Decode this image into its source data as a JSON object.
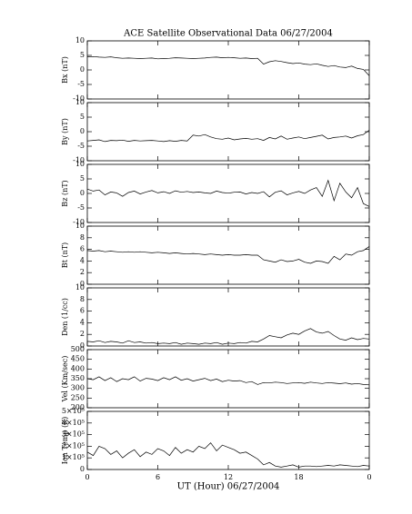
{
  "chart_data": {
    "type": "line",
    "title": "ACE Satellite Observational Data   06/27/2004",
    "xlabel": "UT (Hour)   06/27/2004",
    "xlim": [
      0,
      24
    ],
    "xticks": [
      0,
      6,
      12,
      18,
      {
        "value": 24,
        "label": "0"
      }
    ],
    "x": [
      0,
      0.5,
      1,
      1.5,
      2,
      2.5,
      3,
      3.5,
      4,
      4.5,
      5,
      5.5,
      6,
      6.5,
      7,
      7.5,
      8,
      8.5,
      9,
      9.5,
      10,
      10.5,
      11,
      11.5,
      12,
      12.5,
      13,
      13.5,
      14,
      14.5,
      15,
      15.5,
      16,
      16.5,
      17,
      17.5,
      18,
      18.5,
      19,
      19.5,
      20,
      20.5,
      21,
      21.5,
      22,
      22.5,
      23,
      23.5,
      24
    ],
    "panels": [
      {
        "ylabel": "Bx (nT)",
        "ylim": [
          -10,
          10
        ],
        "yticks": [
          -10,
          -5,
          0,
          5,
          10
        ],
        "color": "#000000",
        "values": [
          4.5,
          4.6,
          4.4,
          4.3,
          4.5,
          4.2,
          4.0,
          4.1,
          4.0,
          3.9,
          4.0,
          4.1,
          3.8,
          3.9,
          4.0,
          4.2,
          4.1,
          4.0,
          3.9,
          4.0,
          4.1,
          4.3,
          4.4,
          4.2,
          4.3,
          4.2,
          4.0,
          4.1,
          3.9,
          4.0,
          2.0,
          2.8,
          3.2,
          2.9,
          2.5,
          2.2,
          2.4,
          2.0,
          1.8,
          2.1,
          1.6,
          1.2,
          1.5,
          1.0,
          0.8,
          1.3,
          0.5,
          0.2,
          -2.0
        ]
      },
      {
        "ylabel": "By (nT)",
        "ylim": [
          -10,
          10
        ],
        "yticks": [
          -10,
          -5,
          0,
          5,
          10
        ],
        "color": "#000000",
        "values": [
          -3.2,
          -3.0,
          -2.8,
          -3.4,
          -3.0,
          -3.1,
          -2.9,
          -3.3,
          -3.0,
          -3.2,
          -3.1,
          -3.0,
          -3.2,
          -3.4,
          -3.1,
          -3.3,
          -3.0,
          -3.2,
          -1.2,
          -1.5,
          -1.0,
          -1.8,
          -2.4,
          -2.6,
          -2.2,
          -2.8,
          -2.5,
          -2.3,
          -2.6,
          -2.4,
          -3.0,
          -2.0,
          -2.5,
          -1.5,
          -2.6,
          -2.2,
          -1.8,
          -2.4,
          -2.0,
          -1.6,
          -1.2,
          -2.5,
          -2.0,
          -1.8,
          -1.5,
          -2.2,
          -1.4,
          -1.0,
          0.5
        ]
      },
      {
        "ylabel": "Bz (nT)",
        "ylim": [
          -10,
          10
        ],
        "yticks": [
          -10,
          -5,
          0,
          5,
          10
        ],
        "color": "#000000",
        "values": [
          1.5,
          0.8,
          1.2,
          -0.5,
          0.5,
          0.2,
          -1.0,
          0.3,
          0.8,
          -0.2,
          0.5,
          1.0,
          0.2,
          0.6,
          0.0,
          0.9,
          0.4,
          0.7,
          0.3,
          0.5,
          0.2,
          0.0,
          0.8,
          0.3,
          0.1,
          0.4,
          0.5,
          -0.2,
          0.3,
          0.0,
          0.6,
          -1.2,
          0.4,
          0.9,
          -0.5,
          0.2,
          0.7,
          0.0,
          1.2,
          2.0,
          -1.0,
          4.5,
          -2.5,
          3.5,
          0.5,
          -1.5,
          2.0,
          -3.5,
          -4.5
        ]
      },
      {
        "ylabel": "Bt (nT)",
        "ylim": [
          0,
          10
        ],
        "yticks": [
          0,
          2,
          4,
          6,
          8,
          10
        ],
        "color": "#000000",
        "values": [
          5.8,
          5.7,
          5.8,
          5.6,
          5.7,
          5.6,
          5.5,
          5.6,
          5.5,
          5.6,
          5.5,
          5.4,
          5.5,
          5.4,
          5.3,
          5.4,
          5.3,
          5.2,
          5.3,
          5.2,
          5.1,
          5.2,
          5.1,
          5.0,
          5.1,
          5.0,
          5.0,
          5.1,
          5.0,
          5.0,
          4.2,
          4.0,
          3.8,
          4.2,
          3.9,
          4.0,
          4.3,
          3.8,
          3.6,
          4.0,
          3.9,
          3.6,
          4.8,
          4.2,
          5.2,
          5.0,
          5.6,
          5.8,
          6.5
        ]
      },
      {
        "ylabel": "Den (1/cc)",
        "ylim": [
          0,
          10
        ],
        "yticks": [
          0,
          2,
          4,
          6,
          8,
          10
        ],
        "color": "#000000",
        "values": [
          0.8,
          0.7,
          0.9,
          0.6,
          0.8,
          0.7,
          0.5,
          0.9,
          0.6,
          0.7,
          0.5,
          0.6,
          0.4,
          0.5,
          0.4,
          0.6,
          0.3,
          0.5,
          0.4,
          0.3,
          0.5,
          0.4,
          0.6,
          0.3,
          0.5,
          0.4,
          0.6,
          0.5,
          0.8,
          0.7,
          1.2,
          1.8,
          1.6,
          1.4,
          1.9,
          2.2,
          2.0,
          2.6,
          3.0,
          2.4,
          2.2,
          2.5,
          1.8,
          1.2,
          1.0,
          1.4,
          1.1,
          1.3,
          1.2
        ]
      },
      {
        "ylabel": "Vel (Km/sec)",
        "ylim": [
          200,
          500
        ],
        "yticks": [
          200,
          250,
          300,
          350,
          400,
          450,
          500
        ],
        "color": "#000000",
        "values": [
          350,
          345,
          360,
          340,
          355,
          335,
          350,
          345,
          360,
          338,
          352,
          348,
          340,
          355,
          345,
          360,
          342,
          350,
          338,
          345,
          352,
          340,
          348,
          335,
          342,
          338,
          340,
          330,
          335,
          320,
          330,
          328,
          332,
          330,
          325,
          328,
          330,
          326,
          332,
          328,
          325,
          330,
          327,
          324,
          328,
          322,
          325,
          320,
          318
        ]
      },
      {
        "ylabel": "Ion Temp (K)",
        "ylim": [
          0,
          500000
        ],
        "yticks": [
          0,
          {
            "value": 100000,
            "label": "1×10⁵"
          },
          {
            "value": 200000,
            "label": "2×10⁵"
          },
          {
            "value": 300000,
            "label": "3×10⁵"
          },
          {
            "value": 400000,
            "label": "4×10⁵"
          },
          {
            "value": 500000,
            "label": "5×10⁵"
          }
        ],
        "color": "#000000",
        "values": [
          150000,
          120000,
          200000,
          180000,
          130000,
          160000,
          100000,
          140000,
          170000,
          110000,
          150000,
          130000,
          180000,
          160000,
          120000,
          190000,
          140000,
          170000,
          150000,
          200000,
          180000,
          230000,
          160000,
          210000,
          190000,
          170000,
          140000,
          150000,
          120000,
          90000,
          40000,
          60000,
          30000,
          20000,
          30000,
          40000,
          20000,
          30000,
          30000,
          25000,
          30000,
          35000,
          30000,
          40000,
          35000,
          30000,
          25000,
          35000,
          30000
        ]
      }
    ]
  }
}
